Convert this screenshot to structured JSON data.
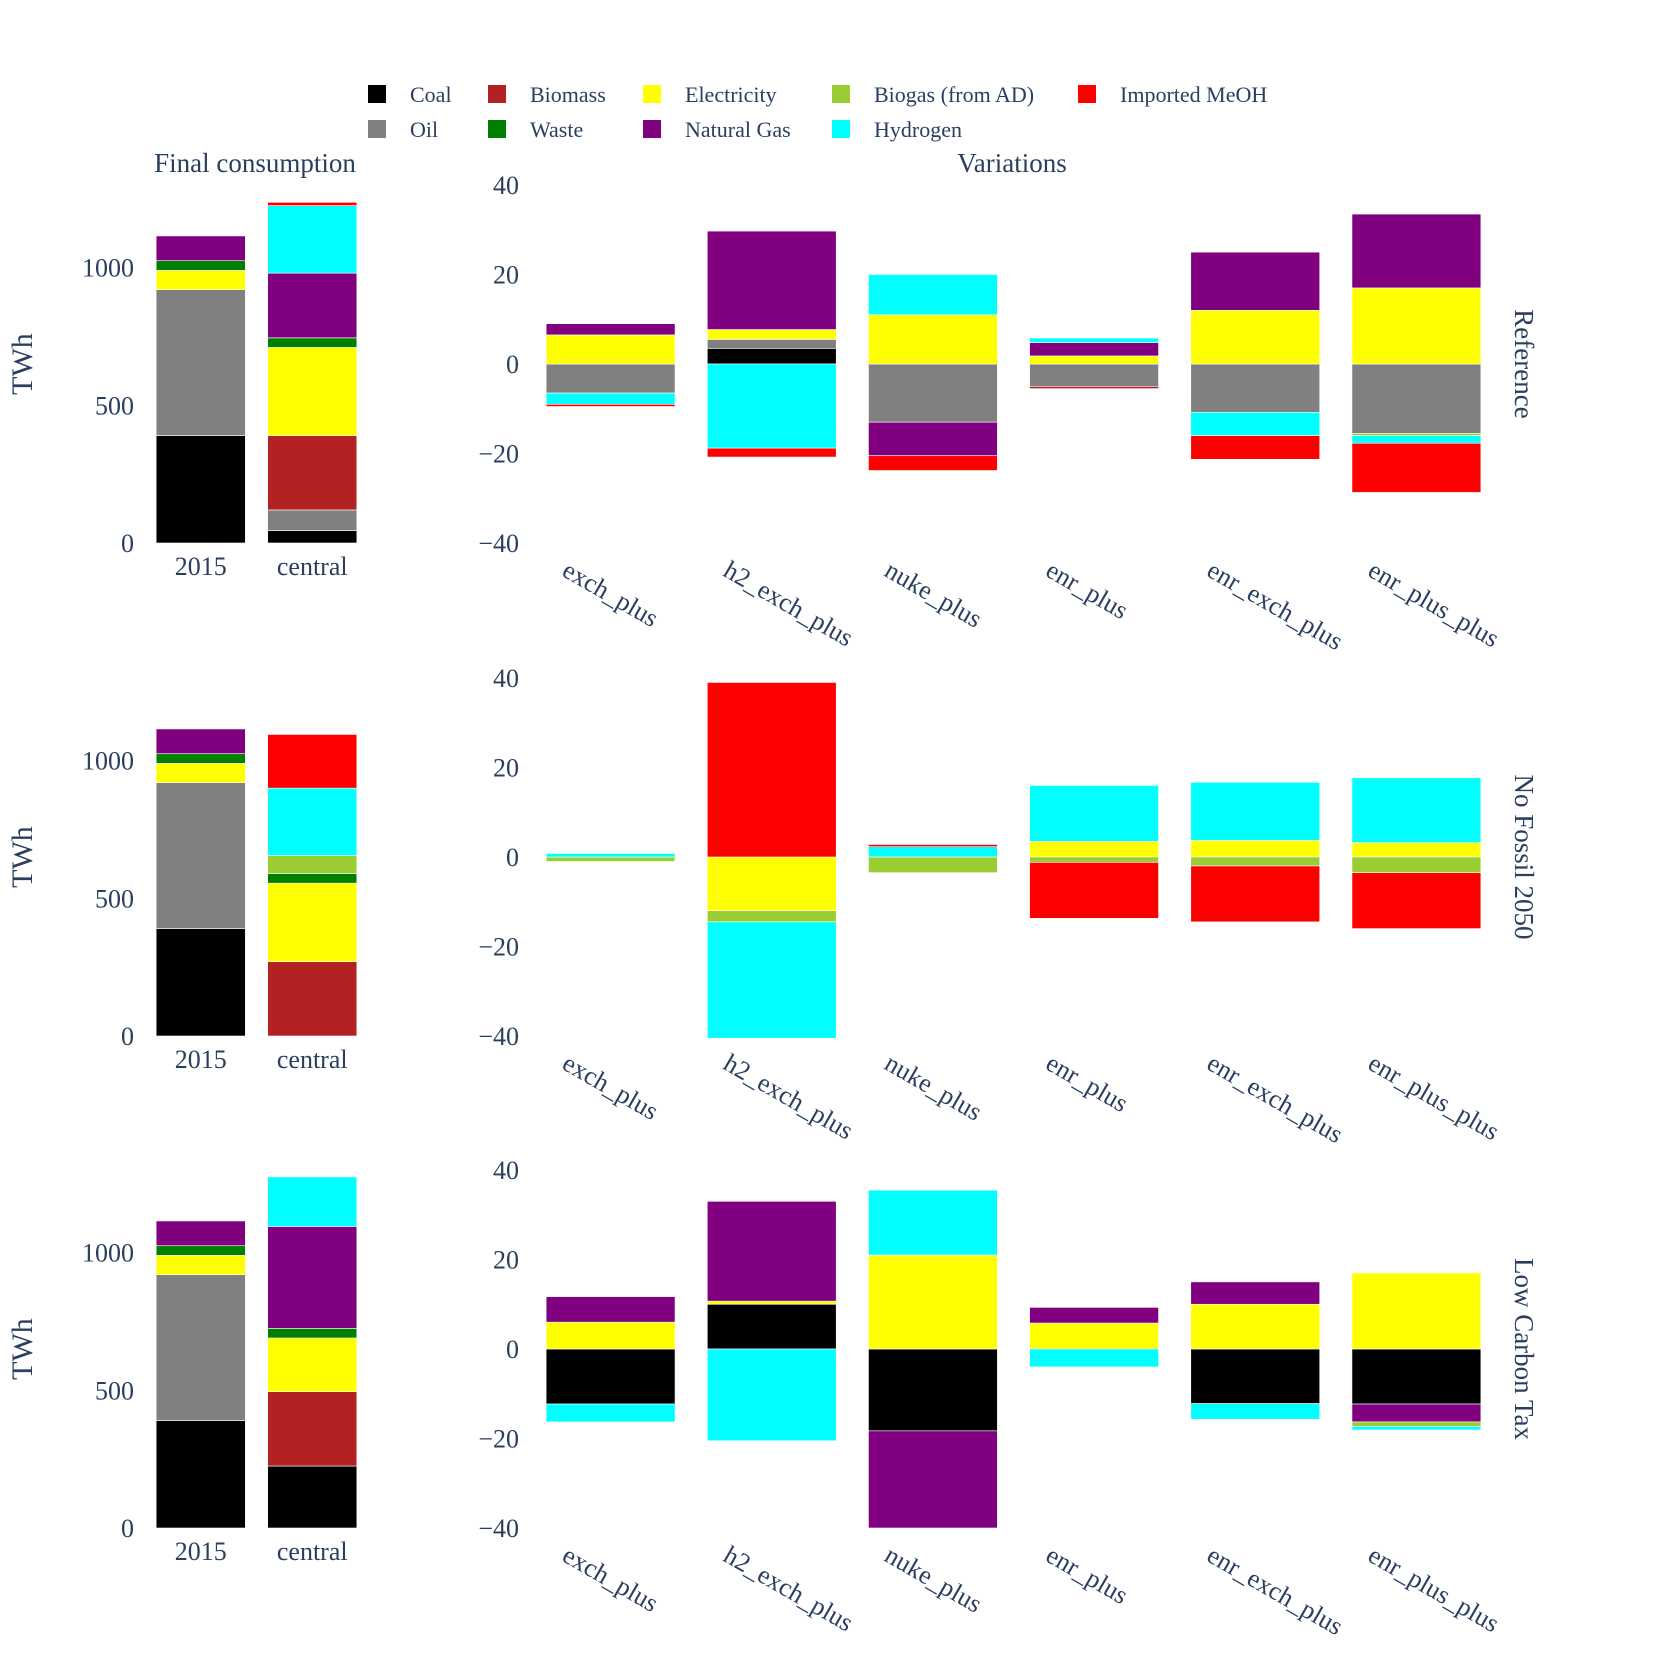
{
  "legend": [
    {
      "name": "Coal",
      "color": "#000000"
    },
    {
      "name": "Oil",
      "color": "#808080"
    },
    {
      "name": "Biomass",
      "color": "#b22222"
    },
    {
      "name": "Waste",
      "color": "#008000"
    },
    {
      "name": "Electricity",
      "color": "#ffff00"
    },
    {
      "name": "Natural Gas",
      "color": "#800080"
    },
    {
      "name": "Biogas (from AD)",
      "color": "#9acd32"
    },
    {
      "name": "Hydrogen",
      "color": "#00ffff"
    },
    {
      "name": "Imported MeOH",
      "color": "#ff0000"
    }
  ],
  "column_titles": {
    "left": "Final consumption",
    "right": "Variations"
  },
  "y_label": "TWh",
  "chart_data": [
    {
      "type": "bar",
      "scenario": "Reference",
      "panel": "Final consumption",
      "stacked": true,
      "categories": [
        "2015",
        "central"
      ],
      "ylim": [
        0,
        1300
      ],
      "yticks": [
        0,
        500,
        1000
      ],
      "series": [
        {
          "name": "Coal",
          "values": [
            390,
            45
          ]
        },
        {
          "name": "Oil",
          "values": [
            530,
            75
          ]
        },
        {
          "name": "Biomass",
          "values": [
            0,
            270
          ]
        },
        {
          "name": "Electricity",
          "values": [
            70,
            320
          ]
        },
        {
          "name": "Waste",
          "values": [
            35,
            35
          ]
        },
        {
          "name": "Natural Gas",
          "values": [
            90,
            235
          ]
        },
        {
          "name": "Hydrogen",
          "values": [
            0,
            245
          ]
        },
        {
          "name": "Imported MeOH",
          "values": [
            0,
            12
          ]
        }
      ]
    },
    {
      "type": "bar",
      "scenario": "Reference",
      "panel": "Variations",
      "stacked": true,
      "categories": [
        "exch_plus",
        "h2_exch_plus",
        "nuke_plus",
        "enr_plus",
        "enr_exch_plus",
        "enr_plus_plus"
      ],
      "ylim": [
        -40,
        40
      ],
      "yticks": [
        -40,
        -20,
        0,
        20,
        40
      ],
      "series": [
        {
          "name": "Coal",
          "values": [
            0,
            3.5,
            0,
            0,
            0,
            0
          ]
        },
        {
          "name": "Oil",
          "values": [
            -6.5,
            2,
            -13,
            -5,
            -10.8,
            -15.5
          ]
        },
        {
          "name": "Biomass",
          "values": [
            0,
            0,
            0,
            -0.5,
            0,
            0
          ]
        },
        {
          "name": "Electricity",
          "values": [
            6.5,
            2.2,
            11,
            1.8,
            12,
            17
          ]
        },
        {
          "name": "Natural Gas",
          "values": [
            2.5,
            22,
            -7.5,
            3,
            13,
            16.5
          ]
        },
        {
          "name": "Biogas (from AD)",
          "values": [
            0,
            0,
            0,
            0,
            0,
            -0.5
          ]
        },
        {
          "name": "Hydrogen",
          "values": [
            -2.5,
            -18.8,
            9,
            1,
            -5.2,
            -1.7
          ]
        },
        {
          "name": "Imported MeOH",
          "values": [
            -0.5,
            -2,
            -3.3,
            0,
            -5.3,
            -11
          ]
        }
      ]
    },
    {
      "type": "bar",
      "scenario": "No Fossil 2050",
      "panel": "Final consumption",
      "stacked": true,
      "categories": [
        "2015",
        "central"
      ],
      "ylim": [
        0,
        1300
      ],
      "yticks": [
        0,
        500,
        1000
      ],
      "series": [
        {
          "name": "Coal",
          "values": [
            390,
            0
          ]
        },
        {
          "name": "Oil",
          "values": [
            530,
            0
          ]
        },
        {
          "name": "Biomass",
          "values": [
            0,
            270
          ]
        },
        {
          "name": "Electricity",
          "values": [
            70,
            285
          ]
        },
        {
          "name": "Waste",
          "values": [
            35,
            35
          ]
        },
        {
          "name": "Biogas (from AD)",
          "values": [
            0,
            65
          ]
        },
        {
          "name": "Natural Gas",
          "values": [
            90,
            0
          ]
        },
        {
          "name": "Hydrogen",
          "values": [
            0,
            245
          ]
        },
        {
          "name": "Imported MeOH",
          "values": [
            0,
            195
          ]
        }
      ]
    },
    {
      "type": "bar",
      "scenario": "No Fossil 2050",
      "panel": "Variations",
      "stacked": true,
      "categories": [
        "exch_plus",
        "h2_exch_plus",
        "nuke_plus",
        "enr_plus",
        "enr_exch_plus",
        "enr_plus_plus"
      ],
      "ylim": [
        -40,
        40
      ],
      "yticks": [
        -40,
        -20,
        0,
        20,
        40
      ],
      "series": [
        {
          "name": "Electricity",
          "values": [
            0,
            -12,
            0,
            3.5,
            3.7,
            3.2
          ]
        },
        {
          "name": "Biogas (from AD)",
          "values": [
            -1,
            -2.5,
            -3.5,
            -1.2,
            -2,
            -3.5
          ]
        },
        {
          "name": "Hydrogen",
          "values": [
            0.8,
            -26,
            2.3,
            12.5,
            13,
            14.5
          ]
        },
        {
          "name": "Imported MeOH",
          "values": [
            0,
            39,
            0.5,
            -12.5,
            -12.5,
            -12.5
          ]
        }
      ]
    },
    {
      "type": "bar",
      "scenario": "Low Carbon Tax",
      "panel": "Final consumption",
      "stacked": true,
      "categories": [
        "2015",
        "central"
      ],
      "ylim": [
        0,
        1300
      ],
      "yticks": [
        0,
        500,
        1000
      ],
      "series": [
        {
          "name": "Coal",
          "values": [
            390,
            225
          ]
        },
        {
          "name": "Oil",
          "values": [
            530,
            0
          ]
        },
        {
          "name": "Biomass",
          "values": [
            0,
            270
          ]
        },
        {
          "name": "Electricity",
          "values": [
            70,
            195
          ]
        },
        {
          "name": "Waste",
          "values": [
            35,
            35
          ]
        },
        {
          "name": "Natural Gas",
          "values": [
            90,
            370
          ]
        },
        {
          "name": "Hydrogen",
          "values": [
            0,
            180
          ]
        }
      ]
    },
    {
      "type": "bar",
      "scenario": "Low Carbon Tax",
      "panel": "Variations",
      "stacked": true,
      "categories": [
        "exch_plus",
        "h2_exch_plus",
        "nuke_plus",
        "enr_plus",
        "enr_exch_plus",
        "enr_plus_plus"
      ],
      "ylim": [
        -40,
        40
      ],
      "yticks": [
        -40,
        -20,
        0,
        20,
        40
      ],
      "series": [
        {
          "name": "Coal",
          "values": [
            -12.3,
            10,
            -18.3,
            0,
            -12.2,
            -12.3
          ]
        },
        {
          "name": "Electricity",
          "values": [
            6,
            0.7,
            21,
            5.8,
            10,
            17
          ]
        },
        {
          "name": "Natural Gas",
          "values": [
            5.7,
            22.3,
            -21.7,
            3.5,
            5,
            -4
          ]
        },
        {
          "name": "Biogas (from AD)",
          "values": [
            0,
            0,
            0,
            0,
            0,
            -1
          ]
        },
        {
          "name": "Hydrogen",
          "values": [
            -4,
            -20.5,
            14.5,
            -4,
            -3.5,
            -0.8
          ]
        }
      ]
    }
  ],
  "row_labels": [
    "Reference",
    "No Fossil 2050",
    "Low Carbon Tax"
  ]
}
